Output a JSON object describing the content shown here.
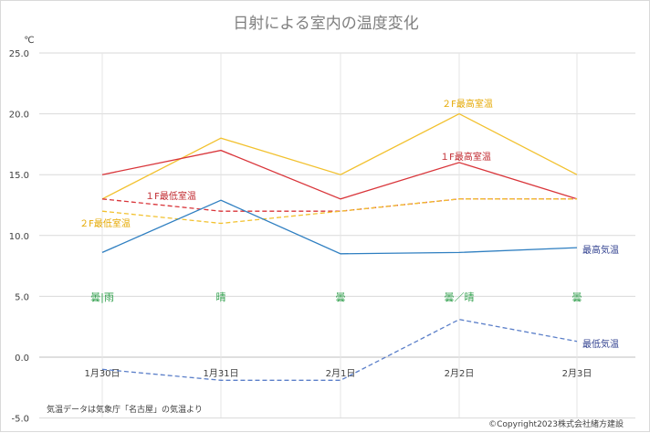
{
  "chart_data": {
    "type": "line",
    "title": "日射による室内の温度変化",
    "ylabel": "℃",
    "ylim": [
      -5,
      25
    ],
    "yticks": [
      "25.0",
      "20.0",
      "15.0",
      "10.0",
      "5.0",
      "0.0",
      "-5.0"
    ],
    "categories": [
      "1月30日",
      "1月31日",
      "2月1日",
      "2月2日",
      "2月3日"
    ],
    "weather": [
      "曇|雨",
      "晴",
      "曇",
      "曇／晴",
      "曇"
    ],
    "series": [
      {
        "name": "２F最高室温",
        "values": [
          13,
          18,
          15,
          20,
          15
        ],
        "color": "#f2c12e",
        "dash": false
      },
      {
        "name": "１F最高室温",
        "values": [
          15,
          17,
          13,
          16,
          13
        ],
        "color": "#d9353a",
        "dash": false
      },
      {
        "name": "１F最低室温",
        "values": [
          13,
          12,
          12,
          13,
          13
        ],
        "color": "#d9353a",
        "dash": true
      },
      {
        "name": "２F最低室温",
        "values": [
          12,
          11,
          12,
          13,
          13
        ],
        "color": "#f2c12e",
        "dash": true
      },
      {
        "name": "最高気温",
        "values": [
          8.6,
          12.9,
          8.5,
          8.6,
          9.0
        ],
        "color": "#2f7fc1",
        "dash": false
      },
      {
        "name": "最低気温",
        "values": [
          -1.0,
          -1.9,
          -1.9,
          3.1,
          1.3
        ],
        "color": "#5b7fc9",
        "dash": true
      }
    ],
    "label_colors": {
      "２F最高室温": "#e5a800",
      "１F最高室温": "#c0272d",
      "１F最低室温": "#c0272d",
      "２F最低室温": "#e5a800",
      "最高気温": "#2f3f8f",
      "最低気温": "#2f3f8f"
    },
    "note": "気温データは気象庁「名古屋」の気温より",
    "copyright": "©Copyright2023株式会社緒方建設"
  }
}
